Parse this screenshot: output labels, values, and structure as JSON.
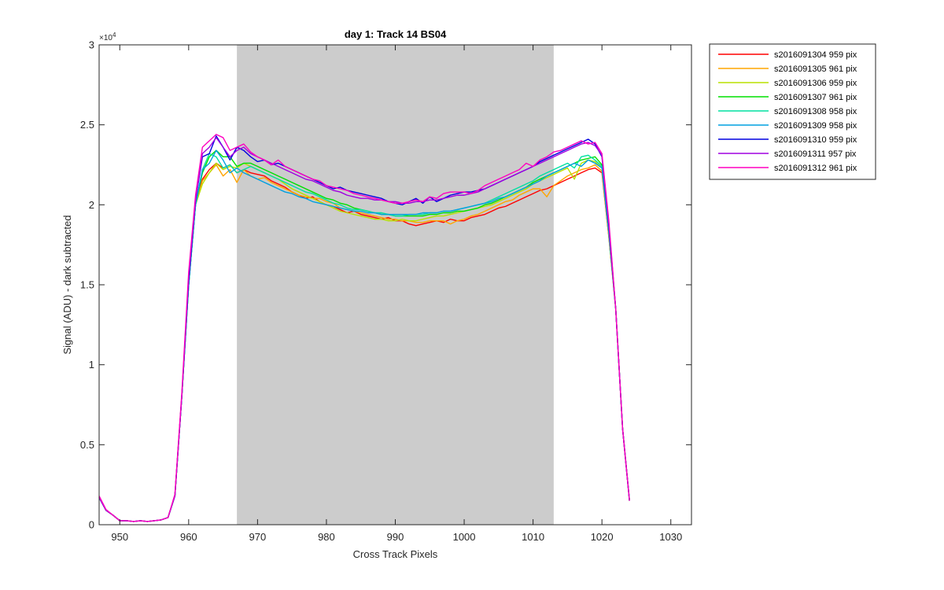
{
  "chart_data": {
    "type": "line",
    "title": "day 1: Track 14  BS04",
    "xlabel": "Cross Track Pixels",
    "ylabel": "Signal (ADU) - dark subtracted",
    "y_exponent_label": "×10",
    "y_exponent_power": "4",
    "xlim": [
      947,
      1033
    ],
    "ylim": [
      0,
      3
    ],
    "y_scale_factor": 10000,
    "xticks": [
      950,
      960,
      970,
      980,
      990,
      1000,
      1010,
      1020,
      1030
    ],
    "xtick_labels": [
      "950",
      "960",
      "970",
      "980",
      "990",
      "1000",
      "1010",
      "1020",
      "1030"
    ],
    "yticks": [
      0,
      0.5,
      1,
      1.5,
      2,
      2.5,
      3
    ],
    "ytick_labels": [
      "0",
      "0.5",
      "1",
      "1.5",
      "2",
      "2.5",
      "3"
    ],
    "grid": false,
    "legend_position": "outside-right",
    "shaded_region": {
      "x_start": 967,
      "x_end": 1013,
      "color": "#cccccc"
    },
    "x": [
      947,
      948,
      949,
      950,
      951,
      952,
      953,
      954,
      955,
      956,
      957,
      958,
      959,
      960,
      961,
      962,
      963,
      964,
      965,
      966,
      967,
      968,
      969,
      970,
      971,
      972,
      973,
      974,
      975,
      976,
      977,
      978,
      979,
      980,
      981,
      982,
      983,
      984,
      985,
      986,
      987,
      988,
      989,
      990,
      991,
      992,
      993,
      994,
      995,
      996,
      997,
      998,
      999,
      1000,
      1001,
      1002,
      1003,
      1004,
      1005,
      1006,
      1007,
      1008,
      1009,
      1010,
      1011,
      1012,
      1013,
      1014,
      1015,
      1016,
      1017,
      1018,
      1019,
      1020,
      1021,
      1022,
      1023,
      1024
    ],
    "series": [
      {
        "name": "s2016091304 959 pix",
        "color": "#ff0000",
        "values": [
          1750,
          900,
          600,
          250,
          250,
          200,
          250,
          200,
          250,
          300,
          450,
          1800,
          8000,
          15200,
          20200,
          21600,
          22200,
          22600,
          22300,
          22500,
          22000,
          22200,
          22000,
          21900,
          21800,
          21500,
          21300,
          21100,
          20800,
          20600,
          20400,
          20500,
          20200,
          20000,
          19900,
          19700,
          19500,
          19600,
          19400,
          19300,
          19200,
          19100,
          19200,
          19000,
          19000,
          18800,
          18700,
          18800,
          18900,
          19000,
          18900,
          19100,
          19000,
          19000,
          19200,
          19300,
          19400,
          19600,
          19800,
          19900,
          20100,
          20300,
          20500,
          20700,
          20900,
          21000,
          21200,
          21400,
          21600,
          21800,
          22000,
          22200,
          22300,
          22000,
          18000,
          13500,
          6000,
          1500
        ]
      },
      {
        "name": "s2016091305 961 pix",
        "color": "#ffa500",
        "values": [
          1700,
          900,
          600,
          250,
          250,
          200,
          250,
          200,
          250,
          300,
          450,
          1800,
          8000,
          15000,
          20000,
          21500,
          22000,
          22500,
          21800,
          22200,
          21400,
          22200,
          21800,
          21600,
          21700,
          21400,
          21200,
          21000,
          20800,
          20600,
          20500,
          20400,
          20400,
          20200,
          20100,
          19800,
          19700,
          19600,
          19500,
          19400,
          19300,
          19200,
          19100,
          19100,
          19000,
          19000,
          18900,
          18900,
          19000,
          19000,
          19000,
          18800,
          19000,
          19100,
          19300,
          19400,
          19600,
          19800,
          20000,
          20200,
          20300,
          20600,
          20800,
          21000,
          21000,
          20500,
          21200,
          21500,
          21800,
          22000,
          22200,
          22300,
          22500,
          22100,
          18000,
          13500,
          6000,
          1500
        ]
      },
      {
        "name": "s2016091306 959 pix",
        "color": "#b8e000",
        "values": [
          1700,
          900,
          600,
          250,
          250,
          200,
          250,
          200,
          250,
          300,
          450,
          1800,
          8000,
          15000,
          20000,
          21300,
          22000,
          22600,
          22200,
          22400,
          22300,
          22600,
          22400,
          22200,
          22000,
          21800,
          21600,
          21300,
          21000,
          20800,
          20600,
          20400,
          20200,
          20000,
          19800,
          19600,
          19500,
          19400,
          19300,
          19200,
          19100,
          19100,
          19000,
          19000,
          19100,
          19000,
          19000,
          19100,
          19200,
          19300,
          19300,
          19400,
          19500,
          19600,
          19700,
          19800,
          19900,
          20000,
          20200,
          20400,
          20600,
          20800,
          21000,
          21300,
          21500,
          21700,
          21900,
          22100,
          22300,
          21600,
          22600,
          22800,
          22700,
          22300,
          18300,
          13500,
          6000,
          1500
        ]
      },
      {
        "name": "s2016091307 961 pix",
        "color": "#00e000",
        "values": [
          1700,
          900,
          600,
          250,
          250,
          200,
          250,
          200,
          250,
          300,
          450,
          1800,
          8000,
          15000,
          20000,
          22000,
          23000,
          23400,
          23000,
          23000,
          22400,
          22600,
          22600,
          22400,
          22200,
          22000,
          21800,
          21600,
          21400,
          21200,
          21000,
          20800,
          20600,
          20400,
          20300,
          20100,
          20000,
          19800,
          19700,
          19600,
          19500,
          19400,
          19400,
          19300,
          19300,
          19300,
          19300,
          19300,
          19400,
          19400,
          19500,
          19500,
          19600,
          19600,
          19700,
          19800,
          20000,
          20100,
          20300,
          20500,
          20700,
          20900,
          21100,
          21400,
          21600,
          21800,
          22000,
          22200,
          22400,
          22600,
          22800,
          22900,
          23000,
          22500,
          18500,
          13500,
          6000,
          1500
        ]
      },
      {
        "name": "s2016091308 958 pix",
        "color": "#00e0a0",
        "values": [
          1700,
          900,
          600,
          250,
          250,
          200,
          250,
          200,
          250,
          300,
          450,
          1800,
          8000,
          15000,
          20000,
          22200,
          23200,
          23000,
          22300,
          22500,
          22000,
          22200,
          22400,
          22200,
          22000,
          21800,
          21600,
          21400,
          21200,
          21000,
          20800,
          20700,
          20500,
          20300,
          20100,
          20000,
          19800,
          19700,
          19700,
          19600,
          19500,
          19500,
          19400,
          19300,
          19300,
          19400,
          19400,
          19400,
          19500,
          19500,
          19600,
          19600,
          19700,
          19800,
          19900,
          20000,
          20100,
          20300,
          20500,
          20700,
          20900,
          21100,
          21300,
          21500,
          21800,
          22000,
          22200,
          22400,
          22600,
          22300,
          23000,
          23100,
          22800,
          22400,
          18400,
          13500,
          6000,
          1500
        ]
      },
      {
        "name": "s2016091309 958 pix",
        "color": "#00a0e0",
        "values": [
          1700,
          900,
          600,
          250,
          250,
          200,
          250,
          200,
          250,
          300,
          450,
          1800,
          8000,
          15000,
          20000,
          22200,
          22600,
          23400,
          22800,
          22000,
          22300,
          22000,
          21800,
          21600,
          21400,
          21200,
          21000,
          20800,
          20700,
          20500,
          20400,
          20200,
          20100,
          20000,
          19900,
          19800,
          19700,
          19600,
          19600,
          19500,
          19500,
          19400,
          19400,
          19400,
          19400,
          19400,
          19400,
          19500,
          19500,
          19500,
          19600,
          19600,
          19700,
          19800,
          19900,
          20000,
          20100,
          20200,
          20400,
          20500,
          20700,
          20900,
          21100,
          21300,
          21500,
          21800,
          22000,
          22200,
          22400,
          22600,
          22400,
          22800,
          22600,
          22300,
          18200,
          13500,
          6000,
          1500
        ]
      },
      {
        "name": "s2016091310 959 pix",
        "color": "#0000e0",
        "values": [
          1700,
          900,
          600,
          250,
          250,
          200,
          250,
          200,
          250,
          300,
          450,
          1800,
          8000,
          15200,
          20300,
          23000,
          23200,
          24300,
          23600,
          22800,
          23600,
          23400,
          23000,
          22700,
          22800,
          22500,
          22600,
          22400,
          22200,
          22000,
          21800,
          21600,
          21400,
          21200,
          21000,
          21100,
          20900,
          20800,
          20700,
          20600,
          20500,
          20400,
          20200,
          20100,
          20000,
          20200,
          20400,
          20100,
          20500,
          20200,
          20400,
          20600,
          20700,
          20800,
          20800,
          20900,
          21000,
          21200,
          21400,
          21600,
          21800,
          22000,
          22200,
          22400,
          22700,
          22900,
          23100,
          23300,
          23500,
          23700,
          23900,
          24100,
          23800,
          23000,
          18700,
          13500,
          6000,
          1500
        ]
      },
      {
        "name": "s2016091311 957 pix",
        "color": "#a000e0",
        "values": [
          1700,
          900,
          600,
          250,
          250,
          200,
          250,
          200,
          250,
          300,
          450,
          1800,
          8000,
          15500,
          20300,
          23200,
          23600,
          24200,
          23600,
          23000,
          23400,
          23600,
          23200,
          23000,
          22800,
          22600,
          22400,
          22200,
          22000,
          21800,
          21600,
          21500,
          21300,
          21100,
          20900,
          20800,
          20600,
          20500,
          20400,
          20400,
          20300,
          20300,
          20200,
          20200,
          20100,
          20100,
          20200,
          20200,
          20300,
          20300,
          20400,
          20500,
          20600,
          20600,
          20700,
          20800,
          21000,
          21200,
          21400,
          21600,
          21800,
          22000,
          22200,
          22400,
          22600,
          22800,
          23000,
          23200,
          23400,
          23600,
          23800,
          23900,
          23700,
          23100,
          18800,
          13500,
          6000,
          1500
        ]
      },
      {
        "name": "s2016091312 961 pix",
        "color": "#ff00c0",
        "values": [
          1800,
          950,
          600,
          250,
          250,
          200,
          250,
          200,
          250,
          300,
          450,
          1900,
          8200,
          15800,
          20600,
          23600,
          24000,
          24400,
          24200,
          23400,
          23600,
          23800,
          23300,
          23000,
          22800,
          22500,
          22800,
          22400,
          22200,
          22000,
          21800,
          21600,
          21500,
          21200,
          21100,
          21000,
          20900,
          20700,
          20600,
          20500,
          20400,
          20300,
          20200,
          20100,
          20100,
          20200,
          20300,
          20200,
          20500,
          20400,
          20700,
          20800,
          20800,
          20800,
          20700,
          20900,
          21200,
          21400,
          21600,
          21800,
          22000,
          22200,
          22600,
          22400,
          22800,
          23000,
          23300,
          23400,
          23600,
          23800,
          24000,
          23800,
          23900,
          23200,
          19000,
          13500,
          6000,
          1500
        ]
      }
    ]
  }
}
